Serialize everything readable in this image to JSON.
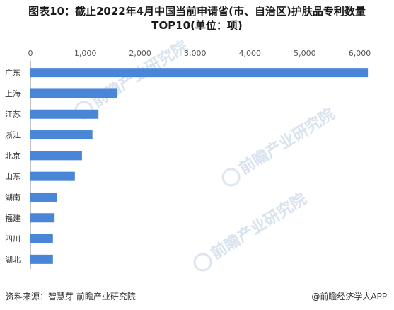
{
  "title_line1": "图表10：截止2022年4月中国当前申请省(市、自治区)护肤品专利数量",
  "title_line2": "TOP10(单位：项)",
  "source": "资料来源：智慧芽 前瞻产业研究院",
  "brand": "@前瞻经济学人APP",
  "watermark": "前瞻产业研究院",
  "colors": {
    "bar": "#4a86d8",
    "grid": "#e6e6e6",
    "axis": "#888888"
  },
  "chart_data": {
    "type": "bar",
    "orientation": "horizontal",
    "title": "图表10：截止2022年4月中国当前申请省(市、自治区)护肤品专利数量TOP10(单位：项)",
    "categories": [
      "广东",
      "上海",
      "江苏",
      "浙江",
      "北京",
      "山东",
      "湖南",
      "福建",
      "四川",
      "湖北"
    ],
    "values": [
      6150,
      1580,
      1240,
      1130,
      940,
      810,
      480,
      440,
      410,
      410
    ],
    "xlim": [
      0,
      6200
    ],
    "xticks": [
      0,
      1000,
      2000,
      3000,
      4000,
      5000,
      6000
    ],
    "xtick_labels": [
      "0",
      "1,000",
      "2,000",
      "3,000",
      "4,000",
      "5,000",
      "6,000"
    ],
    "axis_position": "top",
    "grid": false,
    "legend": "none"
  }
}
